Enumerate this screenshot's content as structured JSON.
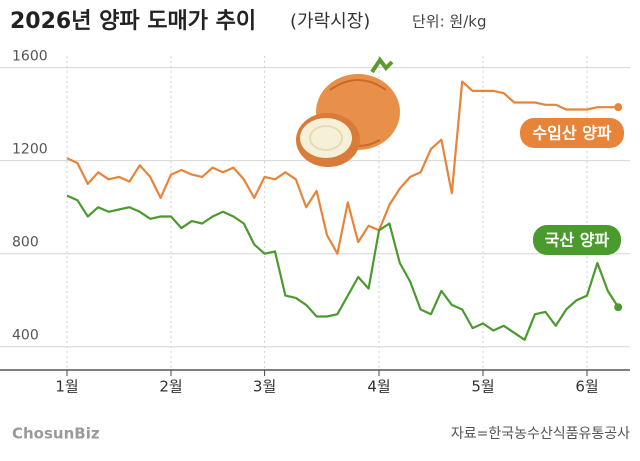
{
  "chart_data": {
    "type": "line",
    "title": "2026년 양파 도매가 추이",
    "subtitle": "(가락시장)",
    "unit": "단위: 원/kg",
    "categories": [
      "1월",
      null,
      null,
      null,
      null,
      null,
      null,
      null,
      null,
      null,
      "2월",
      null,
      null,
      null,
      null,
      null,
      null,
      null,
      null,
      "3월",
      null,
      null,
      null,
      null,
      null,
      null,
      null,
      null,
      null,
      null,
      "4월",
      null,
      null,
      null,
      null,
      null,
      null,
      null,
      null,
      null,
      "5월",
      null,
      null,
      null,
      null,
      null,
      null,
      null,
      null,
      null,
      "6월",
      null,
      null,
      null
    ],
    "series": [
      {
        "name": "수입산 양파",
        "color": "#e8843a",
        "values": [
          1210,
          1190,
          1100,
          1150,
          1120,
          1130,
          1110,
          1180,
          1130,
          1040,
          1140,
          1160,
          1140,
          1130,
          1170,
          1150,
          1170,
          1120,
          1040,
          1130,
          1120,
          1150,
          1120,
          1000,
          1070,
          880,
          800,
          1020,
          850,
          920,
          900,
          1010,
          1080,
          1130,
          1150,
          1250,
          1290,
          1060,
          1540,
          1500,
          1500,
          1500,
          1490,
          1450,
          1450,
          1450,
          1440,
          1440,
          1420,
          1420,
          1420,
          1430,
          1430,
          1430
        ]
      },
      {
        "name": "국산 양파",
        "color": "#4a9a2e",
        "values": [
          1050,
          1030,
          960,
          1000,
          980,
          990,
          1000,
          980,
          950,
          960,
          960,
          910,
          940,
          930,
          960,
          980,
          960,
          930,
          840,
          800,
          810,
          620,
          610,
          580,
          530,
          530,
          540,
          620,
          700,
          650,
          900,
          930,
          760,
          680,
          560,
          540,
          640,
          580,
          560,
          480,
          500,
          470,
          490,
          460,
          430,
          540,
          550,
          490,
          560,
          600,
          620,
          760,
          640,
          570
        ]
      }
    ],
    "ylim": [
      300,
      1650
    ],
    "yticks": [
      400,
      800,
      1200,
      1600
    ],
    "grid": true,
    "source": "자료=한국농수산식품유통공사",
    "brand": "ChosunBiz"
  }
}
